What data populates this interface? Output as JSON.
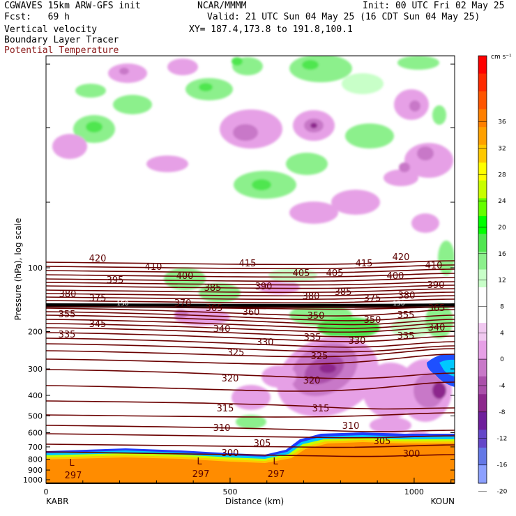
{
  "header": {
    "model": "CGWAVES 15km ARW-GFS init",
    "org": "NCAR/MMMM",
    "init": "Init: 00 UTC Fri 02 May 25",
    "fcst": "Fcst:   69 h",
    "valid": "Valid: 21 UTC Sun 04 May 25 (16 CDT Sun 04 May 25)",
    "xy": "XY= 187.4,173.8 to 191.8,100.1",
    "field1": "Vertical velocity",
    "field2": "Boundary Layer Tracer",
    "field3": "Potential Temperature"
  },
  "chart_data": {
    "type": "cross-section",
    "ylabel": "Pressure (hPa), log scale",
    "xlabel": "Distance (km)",
    "x_ticks": [
      0,
      500,
      1000
    ],
    "xlim": [
      0,
      1110
    ],
    "y_ticks": [
      100,
      200,
      300,
      400,
      500,
      600,
      700,
      800,
      900,
      1000
    ],
    "y_scale": "log",
    "left_station": "KABR",
    "right_station": "KOUN",
    "colorbar": {
      "unit": "cm s⁻¹",
      "ticks": [
        "36",
        "32",
        "28",
        "24",
        "20",
        "16",
        "12",
        "8",
        "4",
        "0",
        "-4",
        "-8",
        "-12",
        "-16",
        "-20"
      ],
      "colors": [
        "#ff0000",
        "#ff2a00",
        "#ff5500",
        "#ff7f00",
        "#ffa000",
        "#ffc800",
        "#ffff00",
        "#c8ff00",
        "#64ff00",
        "#00ff00",
        "#50e650",
        "#8cf08c",
        "#c8ffc8",
        "#ffffff",
        "#ffffff",
        "#f0c8f0",
        "#e6a0e6",
        "#c878c8",
        "#aa50aa",
        "#8c288c",
        "#6e1e9b",
        "#6446c8",
        "#6478e6",
        "#8ca0ff"
      ]
    },
    "theta_labels": [
      {
        "v": "420",
        "x": 140,
        "y": 375
      },
      {
        "v": "415",
        "x": 355,
        "y": 382
      },
      {
        "v": "415",
        "x": 522,
        "y": 382
      },
      {
        "v": "420",
        "x": 575,
        "y": 373
      },
      {
        "v": "410",
        "x": 220,
        "y": 387
      },
      {
        "v": "410",
        "x": 622,
        "y": 385
      },
      {
        "v": "395",
        "x": 165,
        "y": 406
      },
      {
        "v": "400",
        "x": 265,
        "y": 400
      },
      {
        "v": "405",
        "x": 432,
        "y": 396
      },
      {
        "v": "405",
        "x": 480,
        "y": 396
      },
      {
        "v": "400",
        "x": 567,
        "y": 400
      },
      {
        "v": "385",
        "x": 305,
        "y": 417
      },
      {
        "v": "390",
        "x": 378,
        "y": 415
      },
      {
        "v": "385",
        "x": 492,
        "y": 423
      },
      {
        "v": "390",
        "x": 625,
        "y": 413
      },
      {
        "v": "380",
        "x": 97,
        "y": 426
      },
      {
        "v": "375",
        "x": 140,
        "y": 432
      },
      {
        "v": "380",
        "x": 446,
        "y": 429
      },
      {
        "v": "375",
        "x": 534,
        "y": 432
      },
      {
        "v": "380",
        "x": 583,
        "y": 428
      },
      {
        "v": "370",
        "x": 262,
        "y": 439
      },
      {
        "v": "365",
        "x": 307,
        "y": 446
      },
      {
        "v": "360",
        "x": 360,
        "y": 452
      },
      {
        "v": "365",
        "x": 626,
        "y": 446
      },
      {
        "v": "355",
        "x": 96,
        "y": 455
      },
      {
        "v": "350",
        "x": 453,
        "y": 457
      },
      {
        "v": "350",
        "x": 534,
        "y": 463
      },
      {
        "v": "355",
        "x": 582,
        "y": 456
      },
      {
        "v": "345",
        "x": 140,
        "y": 469
      },
      {
        "v": "340",
        "x": 318,
        "y": 476
      },
      {
        "v": "340",
        "x": 626,
        "y": 474
      },
      {
        "v": "335",
        "x": 96,
        "y": 484
      },
      {
        "v": "335",
        "x": 448,
        "y": 488
      },
      {
        "v": "330",
        "x": 380,
        "y": 495
      },
      {
        "v": "330",
        "x": 512,
        "y": 493
      },
      {
        "v": "335",
        "x": 582,
        "y": 486
      },
      {
        "v": "325",
        "x": 338,
        "y": 510
      },
      {
        "v": "325",
        "x": 458,
        "y": 515
      },
      {
        "v": "320",
        "x": 330,
        "y": 547
      },
      {
        "v": "320",
        "x": 447,
        "y": 550
      },
      {
        "v": "315",
        "x": 323,
        "y": 590
      },
      {
        "v": "315",
        "x": 460,
        "y": 590
      },
      {
        "v": "310",
        "x": 318,
        "y": 618
      },
      {
        "v": "310",
        "x": 503,
        "y": 615
      },
      {
        "v": "305",
        "x": 376,
        "y": 640
      },
      {
        "v": "305",
        "x": 548,
        "y": 637
      },
      {
        "v": "300",
        "x": 330,
        "y": 654
      },
      {
        "v": "300",
        "x": 590,
        "y": 655
      },
      {
        "v": "297",
        "x": 105,
        "y": 686
      },
      {
        "v": "297",
        "x": 288,
        "y": 684
      },
      {
        "v": "297",
        "x": 396,
        "y": 684
      }
    ],
    "small_labels": [
      {
        "v": "150",
        "x": 176,
        "y": 438
      },
      {
        "v": "150",
        "x": 572,
        "y": 438
      }
    ],
    "low_markers": [
      {
        "v": "L",
        "x": 103,
        "y": 668
      },
      {
        "v": "L",
        "x": 286,
        "y": 666
      },
      {
        "v": "L",
        "x": 395,
        "y": 666
      }
    ]
  }
}
